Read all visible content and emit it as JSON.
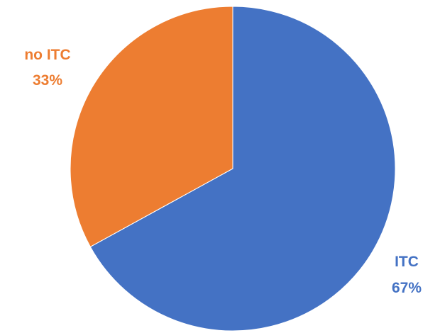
{
  "chart_data": {
    "type": "pie",
    "title": "",
    "slices": [
      {
        "label": "ITC",
        "value": 67,
        "value_label": "67%",
        "color": "#4472C4"
      },
      {
        "label": "no ITC",
        "value": 33,
        "value_label": "33%",
        "color": "#ED7D31"
      }
    ],
    "start": "12 o'clock",
    "direction": "clockwise",
    "legend": "none"
  }
}
